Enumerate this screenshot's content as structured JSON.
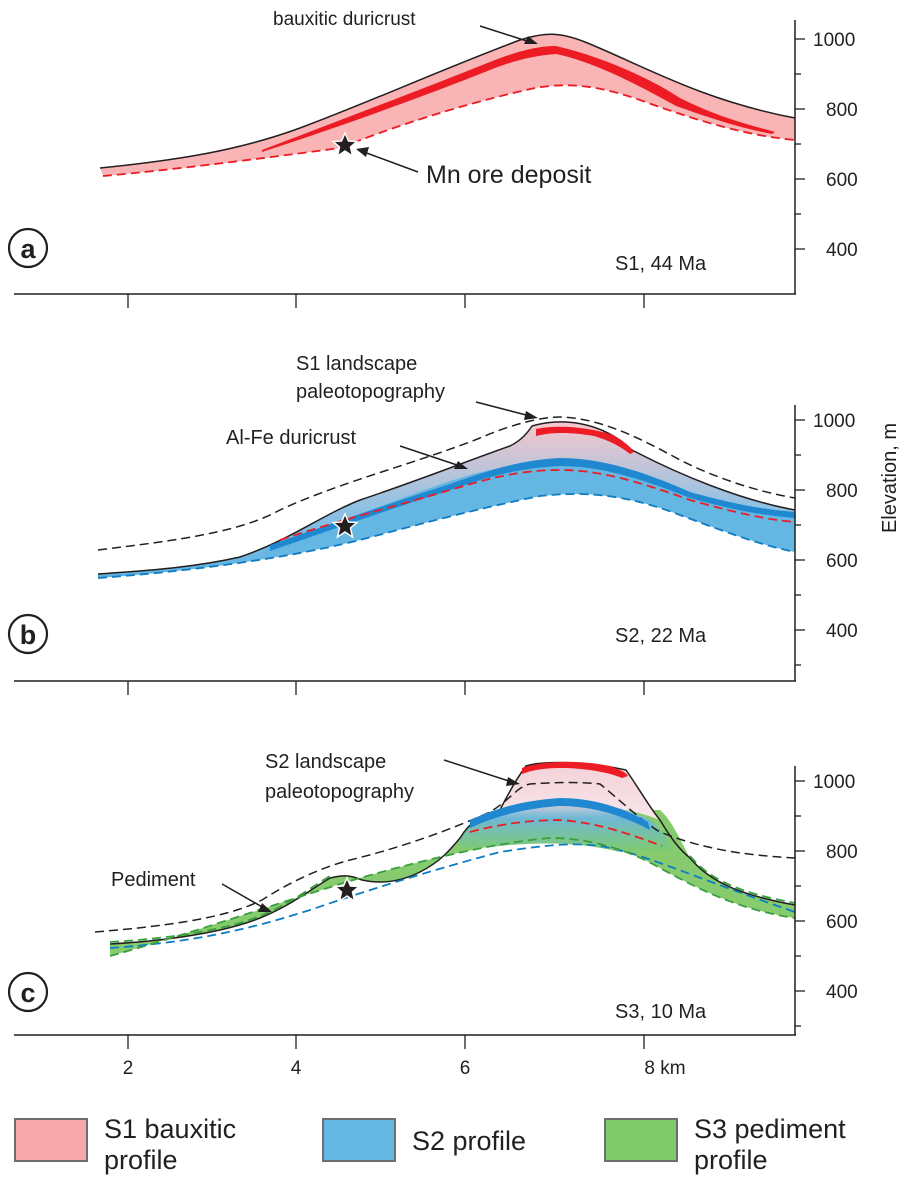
{
  "panels": [
    {
      "letter": "a",
      "stage": "S1, 44 Ma"
    },
    {
      "letter": "b",
      "stage": "S2, 22 Ma"
    },
    {
      "letter": "c",
      "stage": "S3, 10 Ma"
    }
  ],
  "annotations": {
    "bauxitic_duricrust": "bauxitic duricrust",
    "mn_ore_deposit": "Mn ore deposit",
    "s1_landscape_1": "S1 landscape",
    "s1_landscape_2": "paleotopography",
    "al_fe_duricrust": "Al-Fe duricrust",
    "s2_landscape_1": "S2 landscape",
    "s2_landscape_2": "paleotopography",
    "pediment": "Pediment"
  },
  "y_axis": {
    "label": "Elevation, m",
    "ticks": [
      "1000",
      "800",
      "600",
      "400"
    ]
  },
  "x_axis": {
    "ticks": [
      "2",
      "4",
      "6",
      "8 km"
    ]
  },
  "legend": [
    {
      "label": "S1 bauxitic\nprofile",
      "color": "#f7a8ab"
    },
    {
      "label": "S2 profile",
      "color": "#64b6e3"
    },
    {
      "label": "S3 pediment\nprofile",
      "color": "#7fcb6c"
    }
  ],
  "colors": {
    "s1_fill": "#f9b4b6",
    "s1_line": "#ed1c24",
    "s2_fill": "#64b6e3",
    "s2_line": "#0e7cc4",
    "s3_fill": "#86cc6e",
    "s3_line": "#3a9f3f",
    "black": "#231f20"
  }
}
